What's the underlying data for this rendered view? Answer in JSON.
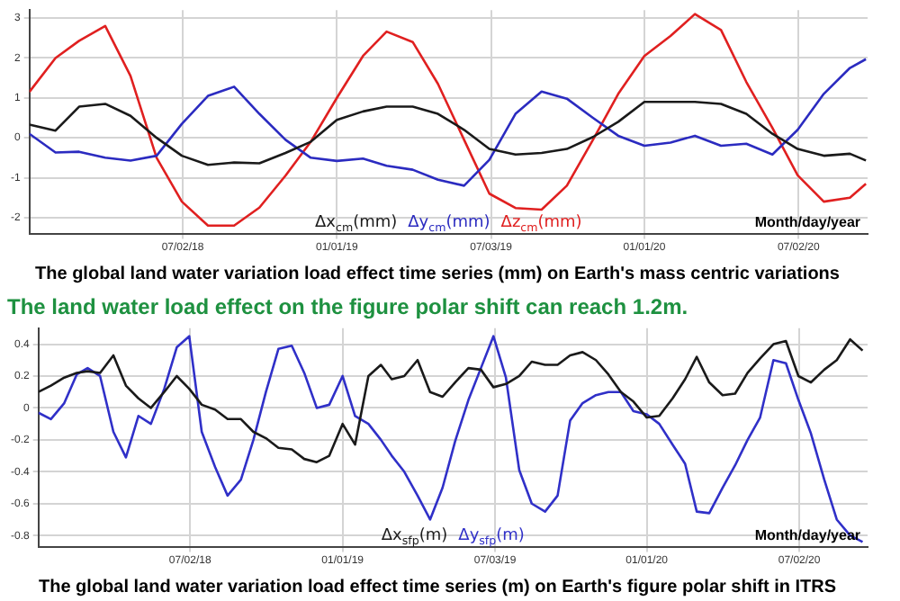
{
  "chart_data": [
    {
      "type": "line",
      "title": "The global land water variation load effect time series (mm) on Earth's mass centric variations",
      "xlabel": "Month/day/year",
      "legend": "bottom",
      "grid": true,
      "x": [
        "2018-01-01",
        "2018-02-01",
        "2018-03-01",
        "2018-04-01",
        "2018-05-01",
        "2018-06-01",
        "2018-07-01",
        "2018-08-01",
        "2018-09-01",
        "2018-10-01",
        "2018-11-01",
        "2018-12-01",
        "2019-01-01",
        "2019-02-01",
        "2019-03-01",
        "2019-04-01",
        "2019-05-01",
        "2019-06-01",
        "2019-07-01",
        "2019-08-01",
        "2019-09-01",
        "2019-10-01",
        "2019-11-01",
        "2019-12-01",
        "2020-01-01",
        "2020-02-01",
        "2020-03-01",
        "2020-04-01",
        "2020-05-01",
        "2020-06-01",
        "2020-07-01",
        "2020-08-01",
        "2020-09-01",
        "2020-09-20"
      ],
      "xlim": [
        "2018-01-01",
        "2020-09-22"
      ],
      "xticks": [
        {
          "value": "2018-07-02",
          "label": "07/02/18"
        },
        {
          "value": "2019-01-01",
          "label": "01/01/19"
        },
        {
          "value": "2019-07-03",
          "label": "07/03/19"
        },
        {
          "value": "2020-01-01",
          "label": "01/01/20"
        },
        {
          "value": "2020-07-02",
          "label": "07/02/20"
        }
      ],
      "ylim": [
        -2.4,
        3.2
      ],
      "yticks": [
        -2,
        -1,
        0,
        1,
        2,
        3
      ],
      "series": [
        {
          "name": "Δx$_{cm}$(mm)",
          "color": "#1a1a1a",
          "values": [
            0.33,
            0.18,
            0.78,
            0.85,
            0.55,
            0,
            -0.45,
            -0.68,
            -0.62,
            -0.64,
            -0.38,
            -0.1,
            0.45,
            0.66,
            0.78,
            0.78,
            0.6,
            0.2,
            -0.28,
            -0.42,
            -0.38,
            -0.28,
            0.02,
            0.4,
            0.9,
            0.9,
            0.9,
            0.85,
            0.6,
            0.1,
            -0.28,
            -0.45,
            -0.4,
            -0.57
          ]
        },
        {
          "name": "Δy$_{cm}$(mm)",
          "color": "#2b2bc0",
          "values": [
            0.1,
            -0.37,
            -0.35,
            -0.5,
            -0.57,
            -0.45,
            0.35,
            1.05,
            1.28,
            0.6,
            -0.05,
            -0.5,
            -0.58,
            -0.52,
            -0.7,
            -0.8,
            -1.05,
            -1.2,
            -0.55,
            0.6,
            1.16,
            0.98,
            0.5,
            0.05,
            -0.2,
            -0.12,
            0.05,
            -0.2,
            -0.15,
            -0.42,
            0.2,
            1.1,
            1.75,
            1.97
          ]
        },
        {
          "name": "Δz$_{cm}$(mm)",
          "color": "#e02020",
          "values": [
            1.15,
            2.0,
            2.43,
            2.8,
            1.55,
            -0.5,
            -1.6,
            -2.2,
            -2.2,
            -1.75,
            -0.95,
            -0.1,
            1.0,
            2.05,
            2.66,
            2.4,
            1.35,
            -0.05,
            -1.4,
            -1.76,
            -1.8,
            -1.2,
            -0.05,
            1.1,
            2.05,
            2.55,
            3.1,
            2.7,
            1.4,
            0.25,
            -0.94,
            -1.6,
            -1.5,
            -1.15
          ]
        }
      ]
    },
    {
      "type": "line",
      "subtitle": "The land water load effect on the figure polar shift can reach 1.2m.",
      "title": "The global land water variation load effect time series (m) on Earth's figure polar shift in ITRS",
      "xlabel": "Month/day/year",
      "legend": "bottom",
      "grid": true,
      "x": [
        "2018-01-01",
        "2018-01-16",
        "2018-02-01",
        "2018-02-16",
        "2018-03-01",
        "2018-03-16",
        "2018-04-01",
        "2018-04-16",
        "2018-05-01",
        "2018-05-16",
        "2018-06-01",
        "2018-06-16",
        "2018-07-01",
        "2018-07-16",
        "2018-08-01",
        "2018-08-16",
        "2018-09-01",
        "2018-09-16",
        "2018-10-01",
        "2018-10-16",
        "2018-11-01",
        "2018-11-16",
        "2018-12-01",
        "2018-12-16",
        "2019-01-01",
        "2019-01-16",
        "2019-02-01",
        "2019-02-16",
        "2019-03-01",
        "2019-03-16",
        "2019-04-01",
        "2019-04-16",
        "2019-05-01",
        "2019-05-16",
        "2019-06-01",
        "2019-06-16",
        "2019-07-01",
        "2019-07-16",
        "2019-08-01",
        "2019-08-16",
        "2019-09-01",
        "2019-09-16",
        "2019-10-01",
        "2019-10-16",
        "2019-11-01",
        "2019-11-16",
        "2019-12-01",
        "2019-12-16",
        "2020-01-01",
        "2020-01-16",
        "2020-02-01",
        "2020-02-16",
        "2020-03-01",
        "2020-03-16",
        "2020-04-01",
        "2020-04-16",
        "2020-05-01",
        "2020-05-16",
        "2020-06-01",
        "2020-06-16",
        "2020-07-01",
        "2020-07-16",
        "2020-08-01",
        "2020-08-16",
        "2020-09-01",
        "2020-09-16"
      ],
      "xlim": [
        "2018-01-01",
        "2020-09-22"
      ],
      "xticks": [
        {
          "value": "2018-07-02",
          "label": "07/02/18"
        },
        {
          "value": "2019-01-01",
          "label": "01/01/19"
        },
        {
          "value": "2019-07-03",
          "label": "07/03/19"
        },
        {
          "value": "2020-01-01",
          "label": "01/01/20"
        },
        {
          "value": "2020-07-02",
          "label": "07/02/20"
        }
      ],
      "ylim": [
        -0.87,
        0.5
      ],
      "yticks": [
        -0.8,
        -0.6,
        -0.4,
        -0.2,
        0,
        0.2,
        0.4
      ],
      "series": [
        {
          "name": "Δx$_{sfp}$(m)",
          "color": "#1a1a1a",
          "values": [
            0.1,
            0.14,
            0.19,
            0.22,
            0.23,
            0.22,
            0.33,
            0.14,
            0.06,
            0,
            0.1,
            0.2,
            0.12,
            0.02,
            -0.01,
            -0.07,
            -0.07,
            -0.15,
            -0.19,
            -0.25,
            -0.26,
            -0.32,
            -0.34,
            -0.3,
            -0.1,
            -0.23,
            0.2,
            0.27,
            0.18,
            0.2,
            0.3,
            0.1,
            0.07,
            0.16,
            0.25,
            0.24,
            0.13,
            0.15,
            0.2,
            0.29,
            0.27,
            0.27,
            0.33,
            0.35,
            0.3,
            0.21,
            0.1,
            0.04,
            -0.06,
            -0.05,
            0.06,
            0.18,
            0.32,
            0.16,
            0.08,
            0.09,
            0.22,
            0.31,
            0.4,
            0.42,
            0.2,
            0.16,
            0.24,
            0.3,
            0.43,
            0.36
          ]
        },
        {
          "name": "Δy$_{sfp}$(m)",
          "color": "#3030c8",
          "values": [
            -0.03,
            -0.07,
            0.03,
            0.21,
            0.25,
            0.2,
            -0.15,
            -0.31,
            -0.05,
            -0.1,
            0.12,
            0.38,
            0.45,
            -0.15,
            -0.37,
            -0.55,
            -0.45,
            -0.2,
            0.1,
            0.37,
            0.39,
            0.22,
            0,
            0.02,
            0.2,
            -0.05,
            -0.1,
            -0.2,
            -0.3,
            -0.4,
            -0.55,
            -0.7,
            -0.5,
            -0.21,
            0.05,
            0.25,
            0.45,
            0.19,
            -0.39,
            -0.6,
            -0.65,
            -0.55,
            -0.08,
            0.03,
            0.08,
            0.1,
            0.1,
            -0.02,
            -0.04,
            -0.1,
            -0.23,
            -0.35,
            -0.65,
            -0.66,
            -0.5,
            -0.36,
            -0.2,
            -0.06,
            0.3,
            0.28,
            0.05,
            -0.16,
            -0.45,
            -0.7,
            -0.8,
            -0.84
          ]
        }
      ]
    }
  ]
}
